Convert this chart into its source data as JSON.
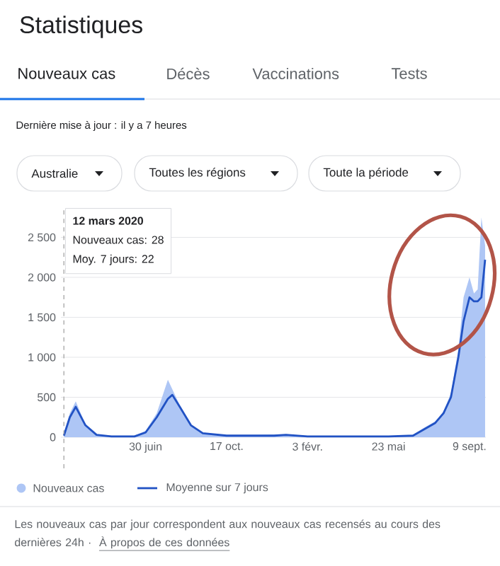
{
  "chart_data": {
    "type": "area",
    "title": "Statistiques",
    "x": [
      "2020-03-12",
      "2020-03-20",
      "2020-03-28",
      "2020-04-10",
      "2020-04-25",
      "2020-05-15",
      "2020-06-15",
      "2020-06-30",
      "2020-07-15",
      "2020-07-30",
      "2020-08-05",
      "2020-08-15",
      "2020-08-30",
      "2020-09-15",
      "2020-10-17",
      "2020-12-20",
      "2021-01-05",
      "2021-02-03",
      "2021-05-23",
      "2021-06-25",
      "2021-07-10",
      "2021-07-25",
      "2021-08-05",
      "2021-08-15",
      "2021-08-25",
      "2021-09-01",
      "2021-09-09",
      "2021-09-15",
      "2021-09-20",
      "2021-09-25",
      "2021-09-30"
    ],
    "series": [
      {
        "name": "Nouveaux cas",
        "color": "#aec6f5",
        "values": [
          30,
          300,
          450,
          160,
          30,
          20,
          20,
          80,
          300,
          720,
          600,
          400,
          160,
          50,
          20,
          30,
          30,
          10,
          10,
          30,
          120,
          200,
          320,
          550,
          1100,
          1750,
          2000,
          1800,
          1850,
          2750,
          2400
        ]
      },
      {
        "name": "Moyenne sur 7 jours",
        "type": "line",
        "color": "#2152c4",
        "values": [
          20,
          250,
          380,
          150,
          30,
          10,
          10,
          60,
          250,
          480,
          530,
          380,
          150,
          50,
          20,
          20,
          30,
          10,
          10,
          20,
          100,
          180,
          300,
          500,
          1000,
          1450,
          1750,
          1700,
          1700,
          1750,
          2220
        ]
      }
    ],
    "xlim": [
      "2020-03-08",
      "2021-10-01"
    ],
    "xticks": [
      {
        "value": "2020-06-30",
        "label": "30 juin"
      },
      {
        "value": "2020-10-17",
        "label": "17 oct."
      },
      {
        "value": "2021-02-03",
        "label": "3 févr."
      },
      {
        "value": "2021-05-23",
        "label": "23 mai"
      },
      {
        "value": "2021-09-09",
        "label": "9 sept."
      }
    ],
    "ylim": [
      0,
      2850
    ],
    "yticks": [
      0,
      500,
      {
        "value": 1000,
        "label": "1 000"
      },
      {
        "value": 1500,
        "label": "1 500"
      },
      {
        "value": 2000,
        "label": "2 000"
      },
      {
        "value": 2500,
        "label": "2 500"
      }
    ],
    "grid": "y",
    "legend": "bottom",
    "ref_lines": [
      {
        "axis": "x",
        "value": "2020-03-12",
        "color": "#9e9e9e",
        "line_style": "dashed"
      }
    ],
    "annotations": [
      "Nouveaux cas",
      "Décès",
      "Vaccinations",
      "Tests",
      "Dernière mise à jour : il y a 7 heures",
      "Australie",
      "Toutes les régions",
      "Toute la période",
      "12 mars 2020",
      "Nouveaux cas: 28",
      "Moy. 7 jours: 22",
      "Les nouveaux cas par jour correspondent aux nouveaux cas recensés au cours des dernières 24h ·",
      "À propos de ces données"
    ]
  }
}
